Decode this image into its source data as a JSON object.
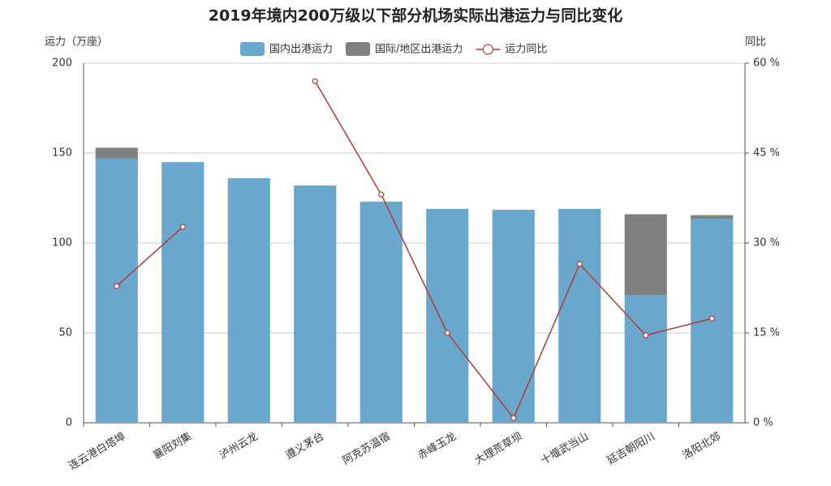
{
  "chart_data": {
    "type": "bar-line",
    "title": "2019年境内200万级以下部分机场实际出港运力与同比变化",
    "y_label": "运力（万座）",
    "y2_label": "同比",
    "categories": [
      "连云港白塔埠",
      "襄阳刘集",
      "泸州云龙",
      "遵义茅台",
      "阿克苏温宿",
      "赤峰玉龙",
      "大理荒草坝",
      "十堰武当山",
      "延吉朝阳川",
      "洛阳北郊"
    ],
    "series": [
      {
        "name": "国内出港运力",
        "color": "#6aa7cc",
        "kind": "bar",
        "values": [
          147,
          145,
          136,
          132,
          123,
          119,
          118.5,
          119,
          71,
          113.5
        ]
      },
      {
        "name": "国际/地区出港运力",
        "color": "#808080",
        "kind": "bar",
        "values": [
          6,
          0,
          0,
          0,
          0,
          0,
          0,
          0,
          45,
          2
        ]
      },
      {
        "name": "运力同比",
        "color": "#b03a3a",
        "kind": "line",
        "axis": "y2",
        "values": [
          22.8,
          32.7,
          null,
          57.0,
          38.1,
          15.0,
          0.8,
          26.5,
          14.6,
          17.4
        ]
      }
    ],
    "ylim": [
      0,
      200
    ],
    "yticks": [
      0,
      50,
      100,
      150,
      200
    ],
    "y2lim": [
      0,
      60
    ],
    "y2ticks": [
      {
        "value": 0,
        "label": "0 %"
      },
      {
        "value": 15,
        "label": "15 %"
      },
      {
        "value": 30,
        "label": "30 %"
      },
      {
        "value": 45,
        "label": "45 %"
      },
      {
        "value": 60,
        "label": "60 %"
      }
    ],
    "grid": true
  }
}
